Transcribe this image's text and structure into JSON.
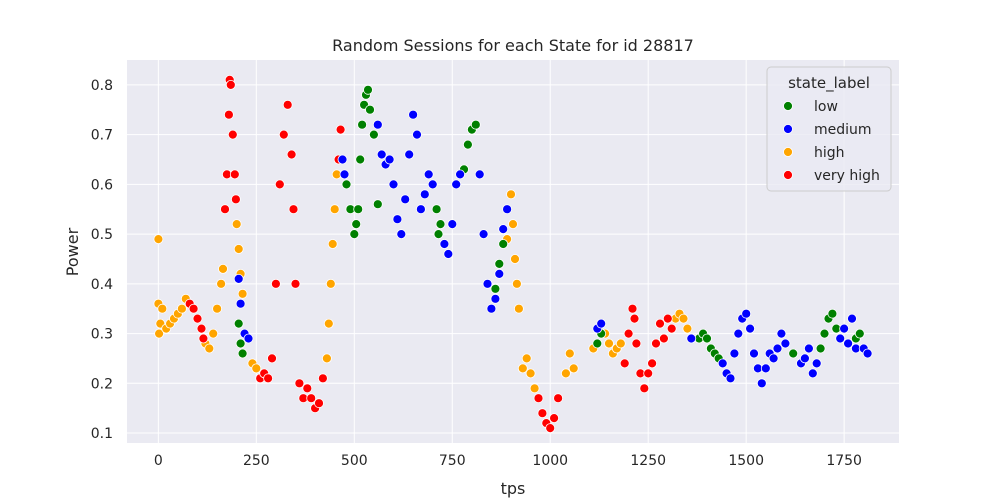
{
  "chart_data": {
    "type": "scatter",
    "title": "Random Sessions for each State for id 28817",
    "xlabel": "tps",
    "ylabel": "Power",
    "xlim": [
      -80,
      1890
    ],
    "ylim": [
      0.08,
      0.85
    ],
    "x_ticks": [
      0,
      250,
      500,
      750,
      1000,
      1250,
      1500,
      1750
    ],
    "y_ticks": [
      0.1,
      0.2,
      0.3,
      0.4,
      0.5,
      0.6,
      0.7,
      0.8
    ],
    "x_tick_labels": [
      "0",
      "250",
      "500",
      "750",
      "1000",
      "1250",
      "1500",
      "1750"
    ],
    "y_tick_labels": [
      "0.1",
      "0.2",
      "0.3",
      "0.4",
      "0.5",
      "0.6",
      "0.7",
      "0.8"
    ],
    "grid": true,
    "legend": {
      "title": "state_label",
      "placement": "top-right",
      "entries": [
        {
          "label": "low",
          "color": "#008000"
        },
        {
          "label": "medium",
          "color": "#0000ff"
        },
        {
          "label": "high",
          "color": "#ffa500"
        },
        {
          "label": "very high",
          "color": "#ff0000"
        }
      ]
    },
    "series": [
      {
        "state": "high",
        "color": "#ffa500",
        "points": [
          [
            0,
            0.49
          ],
          [
            0,
            0.36
          ],
          [
            2,
            0.3
          ],
          [
            5,
            0.32
          ],
          [
            10,
            0.35
          ],
          [
            20,
            0.31
          ],
          [
            30,
            0.32
          ],
          [
            40,
            0.33
          ],
          [
            50,
            0.34
          ],
          [
            60,
            0.35
          ],
          [
            70,
            0.37
          ],
          [
            120,
            0.28
          ],
          [
            130,
            0.27
          ],
          [
            140,
            0.3
          ],
          [
            150,
            0.35
          ],
          [
            160,
            0.4
          ],
          [
            165,
            0.43
          ],
          [
            200,
            0.52
          ],
          [
            205,
            0.47
          ],
          [
            210,
            0.42
          ],
          [
            215,
            0.38
          ],
          [
            240,
            0.24
          ],
          [
            250,
            0.23
          ],
          [
            430,
            0.25
          ],
          [
            435,
            0.32
          ],
          [
            440,
            0.4
          ],
          [
            445,
            0.48
          ],
          [
            450,
            0.55
          ],
          [
            455,
            0.62
          ],
          [
            890,
            0.49
          ],
          [
            900,
            0.58
          ],
          [
            905,
            0.52
          ],
          [
            910,
            0.45
          ],
          [
            915,
            0.4
          ],
          [
            920,
            0.35
          ],
          [
            930,
            0.23
          ],
          [
            940,
            0.25
          ],
          [
            950,
            0.22
          ],
          [
            960,
            0.19
          ],
          [
            1040,
            0.22
          ],
          [
            1050,
            0.26
          ],
          [
            1060,
            0.23
          ],
          [
            1110,
            0.27
          ],
          [
            1140,
            0.3
          ],
          [
            1150,
            0.28
          ],
          [
            1160,
            0.26
          ],
          [
            1170,
            0.27
          ],
          [
            1180,
            0.28
          ],
          [
            1320,
            0.33
          ],
          [
            1330,
            0.34
          ],
          [
            1340,
            0.33
          ],
          [
            1350,
            0.31
          ]
        ]
      },
      {
        "state": "very high",
        "color": "#ff0000",
        "points": [
          [
            80,
            0.36
          ],
          [
            90,
            0.35
          ],
          [
            100,
            0.33
          ],
          [
            110,
            0.31
          ],
          [
            115,
            0.29
          ],
          [
            170,
            0.55
          ],
          [
            175,
            0.62
          ],
          [
            180,
            0.74
          ],
          [
            182,
            0.81
          ],
          [
            185,
            0.8
          ],
          [
            190,
            0.7
          ],
          [
            195,
            0.62
          ],
          [
            198,
            0.57
          ],
          [
            260,
            0.21
          ],
          [
            270,
            0.22
          ],
          [
            280,
            0.21
          ],
          [
            290,
            0.25
          ],
          [
            300,
            0.4
          ],
          [
            310,
            0.6
          ],
          [
            320,
            0.7
          ],
          [
            330,
            0.76
          ],
          [
            340,
            0.66
          ],
          [
            345,
            0.55
          ],
          [
            350,
            0.4
          ],
          [
            360,
            0.2
          ],
          [
            370,
            0.17
          ],
          [
            380,
            0.19
          ],
          [
            390,
            0.17
          ],
          [
            400,
            0.15
          ],
          [
            410,
            0.16
          ],
          [
            420,
            0.21
          ],
          [
            460,
            0.65
          ],
          [
            465,
            0.71
          ],
          [
            970,
            0.17
          ],
          [
            980,
            0.14
          ],
          [
            990,
            0.12
          ],
          [
            1000,
            0.11
          ],
          [
            1010,
            0.13
          ],
          [
            1020,
            0.17
          ],
          [
            1190,
            0.24
          ],
          [
            1200,
            0.3
          ],
          [
            1210,
            0.35
          ],
          [
            1215,
            0.33
          ],
          [
            1220,
            0.28
          ],
          [
            1230,
            0.22
          ],
          [
            1240,
            0.19
          ],
          [
            1250,
            0.22
          ],
          [
            1260,
            0.24
          ],
          [
            1270,
            0.28
          ],
          [
            1280,
            0.32
          ],
          [
            1290,
            0.29
          ],
          [
            1300,
            0.33
          ],
          [
            1310,
            0.31
          ]
        ]
      },
      {
        "state": "low",
        "color": "#008000",
        "points": [
          [
            205,
            0.32
          ],
          [
            210,
            0.28
          ],
          [
            215,
            0.26
          ],
          [
            480,
            0.6
          ],
          [
            490,
            0.55
          ],
          [
            500,
            0.5
          ],
          [
            505,
            0.52
          ],
          [
            510,
            0.55
          ],
          [
            515,
            0.65
          ],
          [
            520,
            0.72
          ],
          [
            525,
            0.76
          ],
          [
            530,
            0.78
          ],
          [
            535,
            0.79
          ],
          [
            540,
            0.75
          ],
          [
            550,
            0.7
          ],
          [
            560,
            0.56
          ],
          [
            710,
            0.55
          ],
          [
            715,
            0.5
          ],
          [
            720,
            0.52
          ],
          [
            780,
            0.63
          ],
          [
            790,
            0.68
          ],
          [
            800,
            0.71
          ],
          [
            810,
            0.72
          ],
          [
            860,
            0.39
          ],
          [
            870,
            0.44
          ],
          [
            880,
            0.48
          ],
          [
            1120,
            0.28
          ],
          [
            1130,
            0.3
          ],
          [
            1380,
            0.29
          ],
          [
            1390,
            0.3
          ],
          [
            1400,
            0.29
          ],
          [
            1410,
            0.27
          ],
          [
            1420,
            0.26
          ],
          [
            1430,
            0.25
          ],
          [
            1620,
            0.26
          ],
          [
            1690,
            0.27
          ],
          [
            1700,
            0.3
          ],
          [
            1710,
            0.33
          ],
          [
            1720,
            0.34
          ],
          [
            1730,
            0.31
          ],
          [
            1780,
            0.29
          ],
          [
            1790,
            0.3
          ]
        ]
      },
      {
        "state": "medium",
        "color": "#0000ff",
        "points": [
          [
            205,
            0.41
          ],
          [
            210,
            0.36
          ],
          [
            220,
            0.3
          ],
          [
            230,
            0.29
          ],
          [
            470,
            0.65
          ],
          [
            475,
            0.62
          ],
          [
            560,
            0.72
          ],
          [
            570,
            0.66
          ],
          [
            580,
            0.64
          ],
          [
            590,
            0.65
          ],
          [
            600,
            0.6
          ],
          [
            610,
            0.53
          ],
          [
            620,
            0.5
          ],
          [
            630,
            0.57
          ],
          [
            640,
            0.66
          ],
          [
            650,
            0.74
          ],
          [
            660,
            0.7
          ],
          [
            670,
            0.55
          ],
          [
            680,
            0.58
          ],
          [
            690,
            0.62
          ],
          [
            700,
            0.6
          ],
          [
            730,
            0.48
          ],
          [
            740,
            0.46
          ],
          [
            750,
            0.52
          ],
          [
            760,
            0.6
          ],
          [
            770,
            0.62
          ],
          [
            820,
            0.62
          ],
          [
            830,
            0.5
          ],
          [
            840,
            0.4
          ],
          [
            850,
            0.35
          ],
          [
            860,
            0.37
          ],
          [
            870,
            0.42
          ],
          [
            880,
            0.51
          ],
          [
            890,
            0.55
          ],
          [
            1120,
            0.31
          ],
          [
            1130,
            0.32
          ],
          [
            1360,
            0.29
          ],
          [
            1440,
            0.24
          ],
          [
            1450,
            0.22
          ],
          [
            1460,
            0.21
          ],
          [
            1470,
            0.26
          ],
          [
            1480,
            0.3
          ],
          [
            1490,
            0.33
          ],
          [
            1500,
            0.34
          ],
          [
            1510,
            0.31
          ],
          [
            1520,
            0.26
          ],
          [
            1530,
            0.23
          ],
          [
            1540,
            0.2
          ],
          [
            1550,
            0.23
          ],
          [
            1560,
            0.26
          ],
          [
            1570,
            0.25
          ],
          [
            1580,
            0.27
          ],
          [
            1590,
            0.3
          ],
          [
            1600,
            0.28
          ],
          [
            1640,
            0.24
          ],
          [
            1650,
            0.25
          ],
          [
            1660,
            0.27
          ],
          [
            1670,
            0.22
          ],
          [
            1680,
            0.24
          ],
          [
            1740,
            0.29
          ],
          [
            1750,
            0.31
          ],
          [
            1760,
            0.28
          ],
          [
            1770,
            0.33
          ],
          [
            1780,
            0.27
          ],
          [
            1800,
            0.27
          ],
          [
            1810,
            0.26
          ]
        ]
      }
    ]
  }
}
